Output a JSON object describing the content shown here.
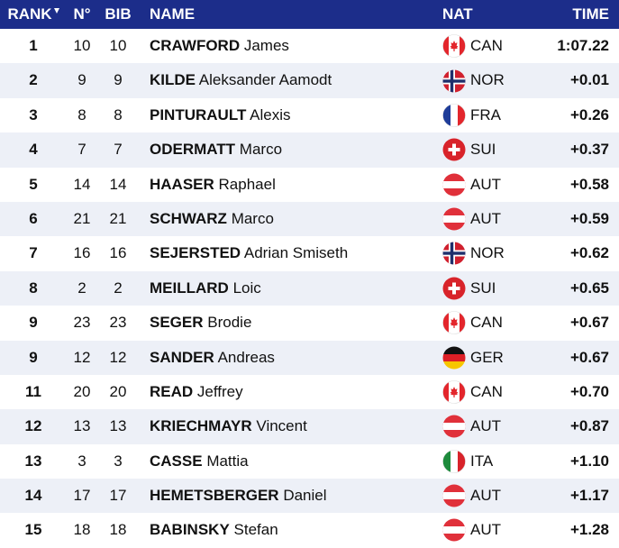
{
  "header": {
    "rank": "RANK",
    "no": "N°",
    "bib": "BIB",
    "name": "NAME",
    "nat": "NAT",
    "time": "TIME"
  },
  "table": {
    "rows": [
      {
        "rank": 1,
        "no": 10,
        "bib": 10,
        "surname": "CRAWFORD",
        "firstname": "James",
        "nat": "CAN",
        "time": "1:07.22"
      },
      {
        "rank": 2,
        "no": 9,
        "bib": 9,
        "surname": "KILDE",
        "firstname": "Aleksander Aamodt",
        "nat": "NOR",
        "time": "+0.01"
      },
      {
        "rank": 3,
        "no": 8,
        "bib": 8,
        "surname": "PINTURAULT",
        "firstname": "Alexis",
        "nat": "FRA",
        "time": "+0.26"
      },
      {
        "rank": 4,
        "no": 7,
        "bib": 7,
        "surname": "ODERMATT",
        "firstname": "Marco",
        "nat": "SUI",
        "time": "+0.37"
      },
      {
        "rank": 5,
        "no": 14,
        "bib": 14,
        "surname": "HAASER",
        "firstname": "Raphael",
        "nat": "AUT",
        "time": "+0.58"
      },
      {
        "rank": 6,
        "no": 21,
        "bib": 21,
        "surname": "SCHWARZ",
        "firstname": "Marco",
        "nat": "AUT",
        "time": "+0.59"
      },
      {
        "rank": 7,
        "no": 16,
        "bib": 16,
        "surname": "SEJERSTED",
        "firstname": "Adrian Smiseth",
        "nat": "NOR",
        "time": "+0.62"
      },
      {
        "rank": 8,
        "no": 2,
        "bib": 2,
        "surname": "MEILLARD",
        "firstname": "Loic",
        "nat": "SUI",
        "time": "+0.65"
      },
      {
        "rank": 9,
        "no": 23,
        "bib": 23,
        "surname": "SEGER",
        "firstname": "Brodie",
        "nat": "CAN",
        "time": "+0.67"
      },
      {
        "rank": 9,
        "no": 12,
        "bib": 12,
        "surname": "SANDER",
        "firstname": "Andreas",
        "nat": "GER",
        "time": "+0.67"
      },
      {
        "rank": 11,
        "no": 20,
        "bib": 20,
        "surname": "READ",
        "firstname": "Jeffrey",
        "nat": "CAN",
        "time": "+0.70"
      },
      {
        "rank": 12,
        "no": 13,
        "bib": 13,
        "surname": "KRIECHMAYR",
        "firstname": "Vincent",
        "nat": "AUT",
        "time": "+0.87"
      },
      {
        "rank": 13,
        "no": 3,
        "bib": 3,
        "surname": "CASSE",
        "firstname": "Mattia",
        "nat": "ITA",
        "time": "+1.10"
      },
      {
        "rank": 14,
        "no": 17,
        "bib": 17,
        "surname": "HEMETSBERGER",
        "firstname": "Daniel",
        "nat": "AUT",
        "time": "+1.17"
      },
      {
        "rank": 15,
        "no": 18,
        "bib": 18,
        "surname": "BABINSKY",
        "firstname": "Stefan",
        "nat": "AUT",
        "time": "+1.28"
      }
    ]
  }
}
